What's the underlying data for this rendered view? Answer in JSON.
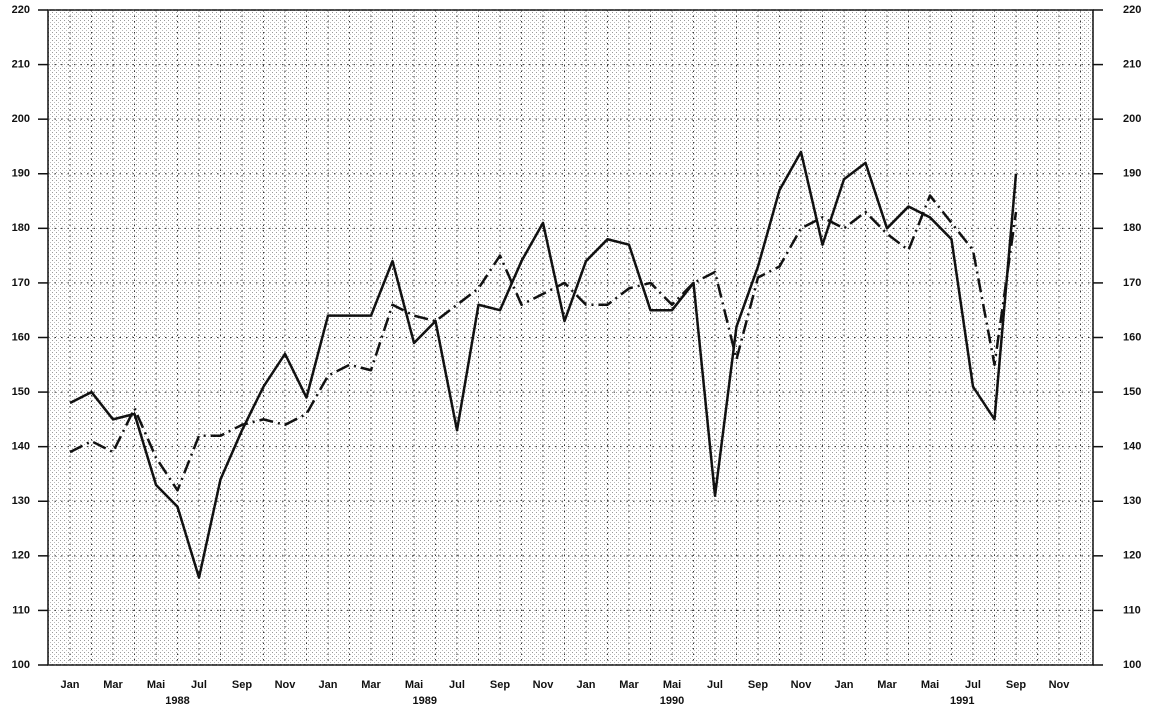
{
  "chart_data": {
    "type": "line",
    "categories": [
      "Jan",
      null,
      "Mar",
      null,
      "Mai",
      null,
      "Jul",
      null,
      "Sep",
      null,
      "Nov",
      null,
      "Jan",
      null,
      "Mar",
      null,
      "Mai",
      null,
      "Jul",
      null,
      "Sep",
      null,
      "Nov",
      null,
      "Jan",
      null,
      "Mar",
      null,
      "Mai",
      null,
      "Jul",
      null,
      "Sep",
      null,
      "Nov",
      null,
      "Jan",
      null,
      "Mar",
      null,
      "Mai",
      null,
      "Jul",
      null,
      "Sep",
      null,
      "Nov",
      null
    ],
    "years": [
      "1988",
      "1989",
      "1990",
      "1991"
    ],
    "series": [
      {
        "color": "#111111",
        "dash": "solid",
        "values": [
          148,
          150,
          145,
          146,
          133,
          129,
          116,
          134,
          143,
          151,
          157,
          149,
          164,
          164,
          164,
          174,
          159,
          163,
          143,
          166,
          165,
          174,
          181,
          163,
          174,
          178,
          177,
          165,
          165,
          170,
          131,
          162,
          173,
          187,
          194,
          177,
          189,
          192,
          180,
          184,
          182,
          178,
          151,
          145,
          190,
          null,
          null,
          null
        ]
      },
      {
        "color": "#111111",
        "dash": "dashdot",
        "values": [
          139,
          141,
          139,
          147,
          138,
          132,
          142,
          142,
          144,
          145,
          144,
          146,
          153,
          155,
          154,
          166,
          164,
          163,
          166,
          169,
          175,
          166,
          168,
          170,
          166,
          166,
          169,
          170,
          166,
          170,
          172,
          156,
          171,
          173,
          180,
          182,
          180,
          183,
          179,
          176,
          186,
          181,
          176,
          155,
          183,
          null,
          null,
          null
        ]
      }
    ],
    "ylim": [
      100,
      220
    ],
    "yticks": [
      100,
      110,
      120,
      130,
      140,
      150,
      160,
      170,
      180,
      190,
      200,
      210,
      220
    ],
    "y2lim": [
      100,
      220
    ],
    "y2ticks": [
      100,
      110,
      120,
      130,
      140,
      150,
      160,
      170,
      180,
      190,
      200,
      210,
      220
    ],
    "grid": true
  }
}
